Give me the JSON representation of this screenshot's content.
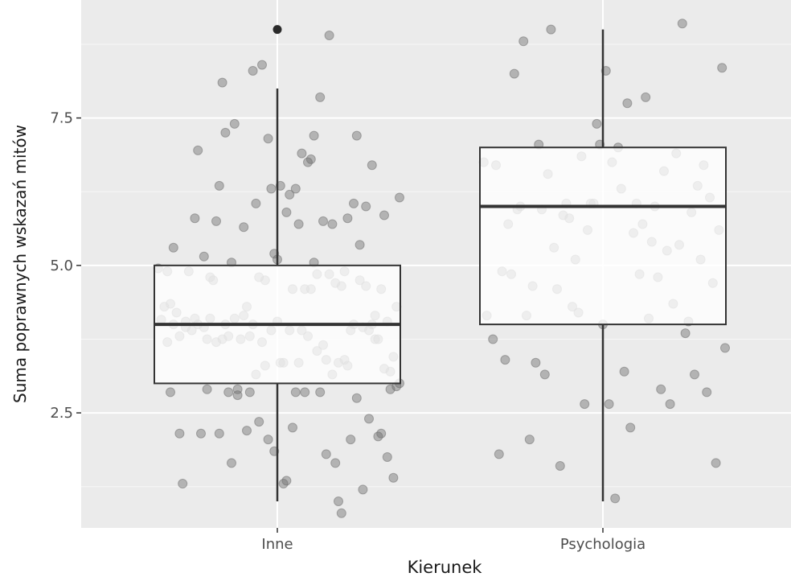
{
  "chart_data": {
    "type": "boxplot",
    "title": "",
    "xlabel": "Kierunek",
    "ylabel": "Suma poprawnych wskazań mitów",
    "ylim": [
      0.55,
      9.5
    ],
    "yticks": [
      2.5,
      5.0,
      7.5
    ],
    "ytick_labels": [
      "2.5",
      "5.0",
      "7.5"
    ],
    "categories": [
      "Inne",
      "Psychologia"
    ],
    "boxes": [
      {
        "category": "Inne",
        "whisker_low": 1.0,
        "q1": 3.0,
        "median": 4.0,
        "q3": 5.0,
        "whisker_high": 8.0,
        "outliers": [
          9.0
        ]
      },
      {
        "category": "Psychologia",
        "whisker_low": 1.0,
        "q1": 4.0,
        "median": 6.0,
        "q3": 7.0,
        "whisker_high": 9.0,
        "outliers": []
      }
    ],
    "jitter_points": [
      {
        "category": "Inne",
        "points": [
          [
            -0.39,
            4.95
          ],
          [
            -0.38,
            4.08
          ],
          [
            -0.37,
            4.3
          ],
          [
            -0.36,
            3.7
          ],
          [
            -0.36,
            4.9
          ],
          [
            -0.35,
            2.85
          ],
          [
            -0.35,
            4.35
          ],
          [
            -0.34,
            5.3
          ],
          [
            -0.34,
            4.0
          ],
          [
            -0.33,
            4.2
          ],
          [
            -0.32,
            3.8
          ],
          [
            -0.32,
            2.15
          ],
          [
            -0.31,
            1.3
          ],
          [
            -0.3,
            3.95
          ],
          [
            -0.3,
            4.05
          ],
          [
            -0.29,
            4.9
          ],
          [
            -0.28,
            3.9
          ],
          [
            -0.27,
            4.1
          ],
          [
            -0.27,
            5.8
          ],
          [
            -0.26,
            4.0
          ],
          [
            -0.26,
            6.95
          ],
          [
            -0.25,
            2.15
          ],
          [
            -0.24,
            3.95
          ],
          [
            -0.24,
            5.15
          ],
          [
            -0.23,
            2.9
          ],
          [
            -0.23,
            3.75
          ],
          [
            -0.22,
            4.1
          ],
          [
            -0.22,
            4.8
          ],
          [
            -0.21,
            4.75
          ],
          [
            -0.2,
            3.7
          ],
          [
            -0.2,
            5.75
          ],
          [
            -0.19,
            6.35
          ],
          [
            -0.19,
            2.15
          ],
          [
            -0.18,
            8.1
          ],
          [
            -0.18,
            3.75
          ],
          [
            -0.17,
            7.25
          ],
          [
            -0.17,
            4.0
          ],
          [
            -0.16,
            2.85
          ],
          [
            -0.16,
            3.8
          ],
          [
            -0.15,
            5.05
          ],
          [
            -0.15,
            1.65
          ],
          [
            -0.14,
            7.4
          ],
          [
            -0.14,
            4.1
          ],
          [
            -0.13,
            2.9
          ],
          [
            -0.13,
            2.8
          ],
          [
            -0.12,
            3.75
          ],
          [
            -0.11,
            4.15
          ],
          [
            -0.11,
            5.65
          ],
          [
            -0.1,
            2.2
          ],
          [
            -0.1,
            4.3
          ],
          [
            -0.09,
            3.8
          ],
          [
            -0.09,
            2.85
          ],
          [
            -0.08,
            4.0
          ],
          [
            -0.08,
            8.3
          ],
          [
            -0.07,
            3.15
          ],
          [
            -0.07,
            6.05
          ],
          [
            -0.06,
            4.8
          ],
          [
            -0.06,
            2.35
          ],
          [
            -0.05,
            3.7
          ],
          [
            -0.05,
            8.4
          ],
          [
            -0.04,
            3.3
          ],
          [
            -0.04,
            4.75
          ],
          [
            -0.03,
            7.15
          ],
          [
            -0.03,
            2.05
          ],
          [
            -0.02,
            3.9
          ],
          [
            -0.02,
            6.3
          ],
          [
            -0.01,
            5.2
          ],
          [
            -0.01,
            1.85
          ],
          [
            0.0,
            4.05
          ],
          [
            0.0,
            5.1
          ],
          [
            0.01,
            6.35
          ],
          [
            0.01,
            3.35
          ],
          [
            0.02,
            3.35
          ],
          [
            0.02,
            1.3
          ],
          [
            0.03,
            1.35
          ],
          [
            0.03,
            5.9
          ],
          [
            0.04,
            3.9
          ],
          [
            0.04,
            6.2
          ],
          [
            0.05,
            4.6
          ],
          [
            0.05,
            2.25
          ],
          [
            0.06,
            2.85
          ],
          [
            0.06,
            6.3
          ],
          [
            0.07,
            3.35
          ],
          [
            0.07,
            5.7
          ],
          [
            0.08,
            3.9
          ],
          [
            0.08,
            6.9
          ],
          [
            0.09,
            2.85
          ],
          [
            0.09,
            4.6
          ],
          [
            0.1,
            3.8
          ],
          [
            0.1,
            6.75
          ],
          [
            0.11,
            4.6
          ],
          [
            0.11,
            6.8
          ],
          [
            0.12,
            5.05
          ],
          [
            0.12,
            7.2
          ],
          [
            0.13,
            3.55
          ],
          [
            0.13,
            4.85
          ],
          [
            0.14,
            2.85
          ],
          [
            0.14,
            7.85
          ],
          [
            0.15,
            3.65
          ],
          [
            0.15,
            5.75
          ],
          [
            0.16,
            3.4
          ],
          [
            0.16,
            1.8
          ],
          [
            0.17,
            4.85
          ],
          [
            0.17,
            8.9
          ],
          [
            0.18,
            3.15
          ],
          [
            0.18,
            5.7
          ],
          [
            0.19,
            4.7
          ],
          [
            0.19,
            1.65
          ],
          [
            0.2,
            3.35
          ],
          [
            0.2,
            1.0
          ],
          [
            0.21,
            4.65
          ],
          [
            0.21,
            0.8
          ],
          [
            0.22,
            3.4
          ],
          [
            0.22,
            4.9
          ],
          [
            0.23,
            3.3
          ],
          [
            0.23,
            5.8
          ],
          [
            0.24,
            3.9
          ],
          [
            0.24,
            2.05
          ],
          [
            0.25,
            4.0
          ],
          [
            0.25,
            6.05
          ],
          [
            0.26,
            2.75
          ],
          [
            0.26,
            7.2
          ],
          [
            0.27,
            4.75
          ],
          [
            0.27,
            5.35
          ],
          [
            0.28,
            3.95
          ],
          [
            0.28,
            1.2
          ],
          [
            0.29,
            4.65
          ],
          [
            0.29,
            6.0
          ],
          [
            0.3,
            3.9
          ],
          [
            0.3,
            2.4
          ],
          [
            0.31,
            4.0
          ],
          [
            0.31,
            6.7
          ],
          [
            0.32,
            3.75
          ],
          [
            0.32,
            4.15
          ],
          [
            0.33,
            2.1
          ],
          [
            0.33,
            3.75
          ],
          [
            0.34,
            4.6
          ],
          [
            0.34,
            2.15
          ],
          [
            0.35,
            3.25
          ],
          [
            0.35,
            5.85
          ],
          [
            0.36,
            4.05
          ],
          [
            0.36,
            1.75
          ],
          [
            0.37,
            3.2
          ],
          [
            0.37,
            2.9
          ],
          [
            0.38,
            3.45
          ],
          [
            0.38,
            1.4
          ],
          [
            0.39,
            4.3
          ],
          [
            0.39,
            2.95
          ],
          [
            0.4,
            3.0
          ],
          [
            0.4,
            6.15
          ]
        ]
      },
      {
        "category": "Psychologia",
        "points": [
          [
            -0.39,
            6.75
          ],
          [
            -0.38,
            4.15
          ],
          [
            -0.36,
            3.75
          ],
          [
            -0.35,
            6.7
          ],
          [
            -0.34,
            1.8
          ],
          [
            -0.33,
            4.9
          ],
          [
            -0.32,
            3.4
          ],
          [
            -0.31,
            5.7
          ],
          [
            -0.3,
            4.85
          ],
          [
            -0.29,
            8.25
          ],
          [
            -0.28,
            5.95
          ],
          [
            -0.27,
            6.0
          ],
          [
            -0.26,
            8.8
          ],
          [
            -0.25,
            4.15
          ],
          [
            -0.24,
            2.05
          ],
          [
            -0.23,
            4.65
          ],
          [
            -0.22,
            3.35
          ],
          [
            -0.21,
            7.05
          ],
          [
            -0.2,
            5.95
          ],
          [
            -0.19,
            3.15
          ],
          [
            -0.18,
            6.55
          ],
          [
            -0.17,
            9.0
          ],
          [
            -0.16,
            5.3
          ],
          [
            -0.15,
            4.6
          ],
          [
            -0.14,
            1.6
          ],
          [
            -0.13,
            5.85
          ],
          [
            -0.12,
            6.05
          ],
          [
            -0.11,
            5.8
          ],
          [
            -0.1,
            4.3
          ],
          [
            -0.09,
            5.1
          ],
          [
            -0.08,
            4.2
          ],
          [
            -0.07,
            6.85
          ],
          [
            -0.06,
            2.65
          ],
          [
            -0.05,
            5.6
          ],
          [
            -0.04,
            6.05
          ],
          [
            -0.03,
            6.05
          ],
          [
            -0.02,
            7.4
          ],
          [
            -0.01,
            7.05
          ],
          [
            0.0,
            4.0
          ],
          [
            0.01,
            8.3
          ],
          [
            0.02,
            2.65
          ],
          [
            0.03,
            6.75
          ],
          [
            0.04,
            1.05
          ],
          [
            0.05,
            7.0
          ],
          [
            0.06,
            6.3
          ],
          [
            0.07,
            3.2
          ],
          [
            0.08,
            7.75
          ],
          [
            0.09,
            2.25
          ],
          [
            0.1,
            5.55
          ],
          [
            0.11,
            6.05
          ],
          [
            0.12,
            4.85
          ],
          [
            0.13,
            5.7
          ],
          [
            0.14,
            7.85
          ],
          [
            0.15,
            4.1
          ],
          [
            0.16,
            5.4
          ],
          [
            0.17,
            6.0
          ],
          [
            0.18,
            4.8
          ],
          [
            0.19,
            2.9
          ],
          [
            0.2,
            6.6
          ],
          [
            0.21,
            5.25
          ],
          [
            0.22,
            2.65
          ],
          [
            0.23,
            4.35
          ],
          [
            0.24,
            6.9
          ],
          [
            0.25,
            5.35
          ],
          [
            0.26,
            9.1
          ],
          [
            0.27,
            3.85
          ],
          [
            0.28,
            4.05
          ],
          [
            0.29,
            5.9
          ],
          [
            0.3,
            3.15
          ],
          [
            0.31,
            6.35
          ],
          [
            0.32,
            5.1
          ],
          [
            0.33,
            6.7
          ],
          [
            0.34,
            2.85
          ],
          [
            0.35,
            6.15
          ],
          [
            0.36,
            4.7
          ],
          [
            0.37,
            1.65
          ],
          [
            0.38,
            5.6
          ],
          [
            0.39,
            8.35
          ],
          [
            0.4,
            3.6
          ]
        ]
      }
    ]
  }
}
